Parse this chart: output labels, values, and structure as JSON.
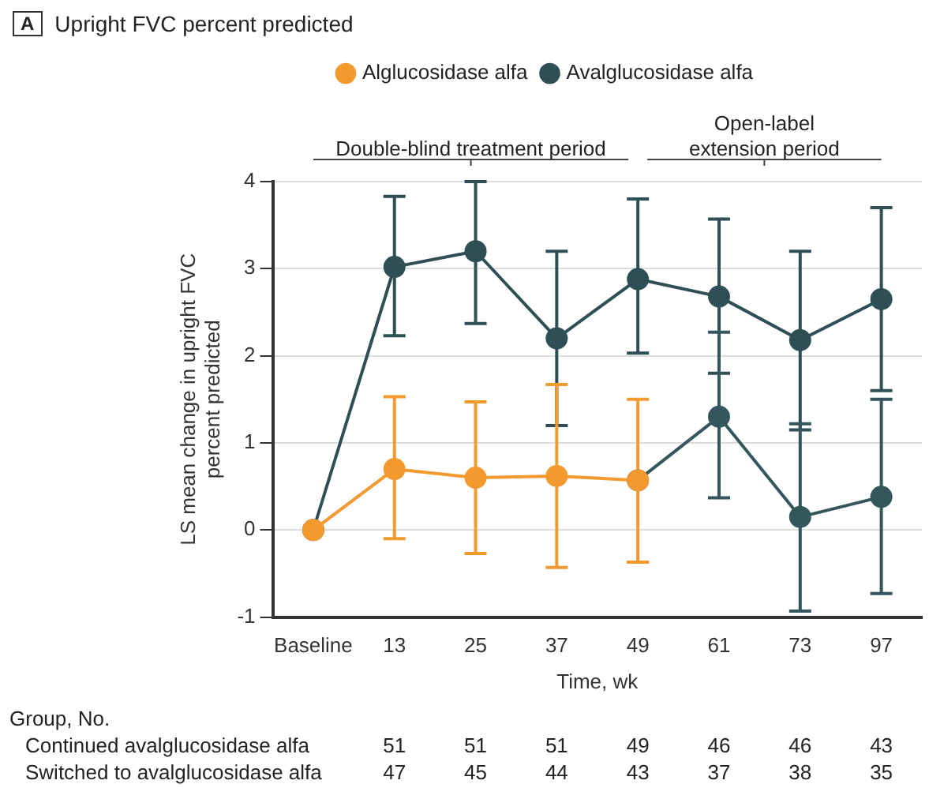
{
  "chart_data": {
    "type": "line",
    "title": "Upright FVC percent predicted",
    "xlabel": "Time, wk",
    "ylabel": "LS mean change in upright FVC percent predicted",
    "categories": [
      "Baseline",
      "13",
      "25",
      "37",
      "49",
      "61",
      "73",
      "97"
    ],
    "series": [
      {
        "name": "Avalglucosidase alfa",
        "color": "#2e4f55",
        "values": [
          0,
          3.02,
          3.2,
          2.2,
          2.88,
          2.68,
          2.18,
          2.65
        ],
        "errors": [
          null,
          [
            2.23,
            3.83
          ],
          [
            2.37,
            4.0
          ],
          [
            1.2,
            3.2
          ],
          [
            2.03,
            3.8
          ],
          [
            1.8,
            3.57
          ],
          [
            1.15,
            3.2
          ],
          [
            1.6,
            3.7
          ]
        ]
      },
      {
        "name": "Alglucosidase alfa",
        "color": "#f39a2e",
        "values": [
          0,
          0.7,
          0.6,
          0.62,
          0.57,
          null,
          null,
          null
        ],
        "errors": [
          null,
          [
            -0.1,
            1.53
          ],
          [
            -0.27,
            1.47
          ],
          [
            -0.43,
            1.67
          ],
          [
            -0.37,
            1.5
          ],
          null,
          null,
          null
        ]
      },
      {
        "color": "#34575e",
        "values": [
          null,
          null,
          null,
          null,
          0.57,
          1.3,
          0.15,
          0.38
        ],
        "errors": [
          null,
          null,
          null,
          null,
          null,
          [
            0.37,
            2.27
          ],
          [
            -0.93,
            1.22
          ],
          [
            -0.73,
            1.5
          ]
        ]
      }
    ],
    "ylim": [
      -1,
      4
    ],
    "yticks": [
      -1,
      0,
      1,
      2,
      3,
      4
    ],
    "grid": "y",
    "legend": "top",
    "marker": "circle",
    "line_style": "solid",
    "annotations": [
      "A",
      "Double-blind treatment period",
      "Open-label extension period",
      "Group, No.",
      "Continued avalglucosidase alfa",
      "51",
      "51",
      "51",
      "49",
      "46",
      "46",
      "43",
      "Switched to avalglucosidase alfa",
      "47",
      "45",
      "44",
      "43",
      "37",
      "38",
      "35"
    ]
  }
}
